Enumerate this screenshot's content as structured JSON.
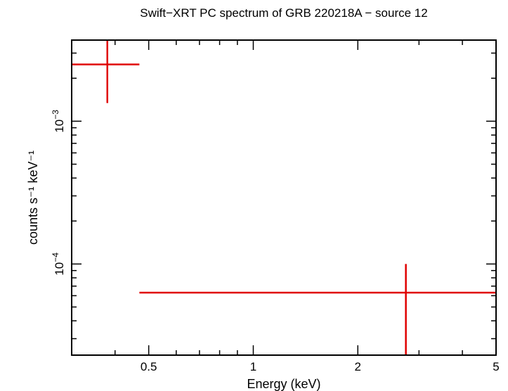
{
  "chart_data": {
    "type": "scatter",
    "title": "Swift−XRT PC spectrum of GRB 220218A − source 12",
    "xlabel": "Energy (keV)",
    "ylabel": "counts s⁻¹ keV⁻¹",
    "xscale": "log",
    "yscale": "log",
    "xlim": [
      0.3,
      5.0
    ],
    "ylim": [
      2.3e-05,
      0.0037
    ],
    "grid": false,
    "x_ticks": [
      {
        "value": 0.5,
        "label": "0.5"
      },
      {
        "value": 1,
        "label": "1"
      },
      {
        "value": 2,
        "label": "2"
      },
      {
        "value": 5,
        "label": "5"
      }
    ],
    "y_ticks": [
      {
        "value": 0.001,
        "label_base": "10",
        "label_exp": "−3"
      },
      {
        "value": 0.0001,
        "label_base": "10",
        "label_exp": "−4"
      }
    ],
    "series": [
      {
        "color": "#e00000",
        "points": [
          {
            "x": 0.38,
            "x_lo": 0.3,
            "x_hi": 0.47,
            "y": 0.0025,
            "y_lo": 0.00134,
            "y_hi": 0.0037
          },
          {
            "x": 2.75,
            "x_lo": 0.47,
            "x_hi": 5.0,
            "y": 6.3e-05,
            "y_lo": 2.3e-05,
            "y_hi": 0.0001
          }
        ]
      }
    ]
  }
}
